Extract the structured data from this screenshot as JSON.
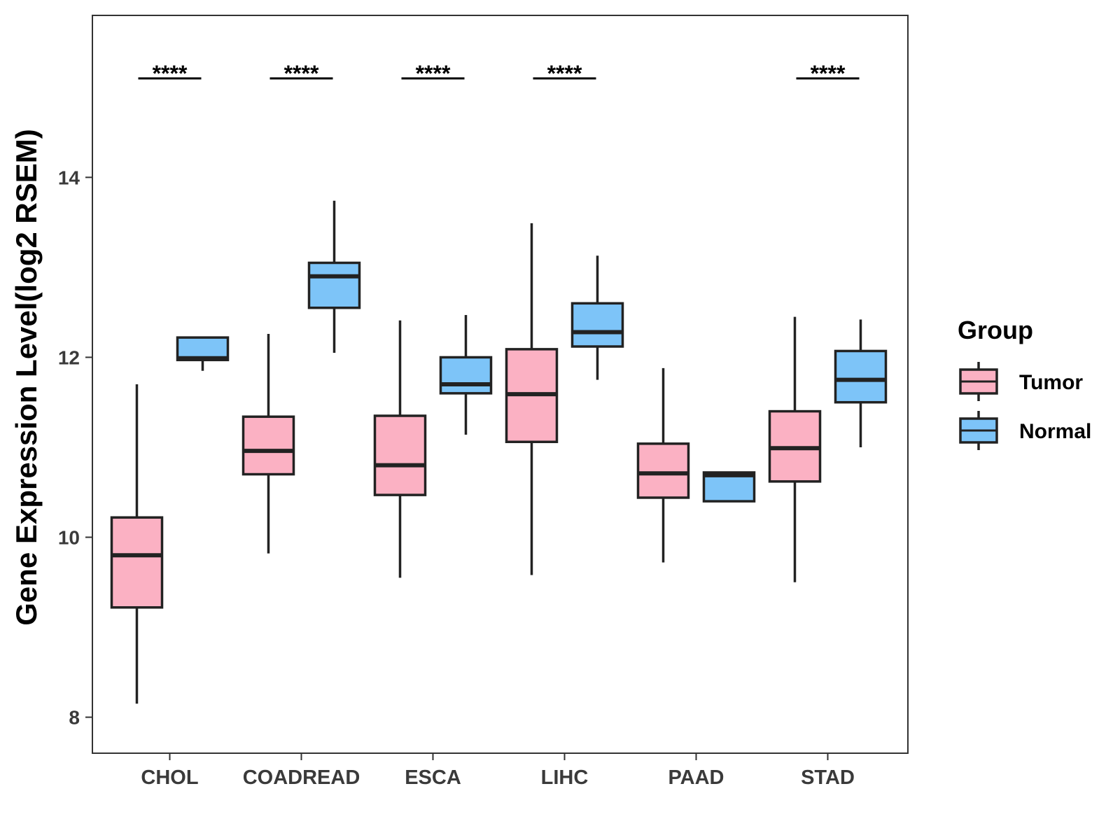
{
  "chart_data": {
    "type": "boxplot",
    "title": "",
    "xlabel": "",
    "ylabel": "Gene Expression Level(log2 RSEM)",
    "ylim": [
      7.6,
      15.8
    ],
    "yticks": [
      8,
      10,
      12,
      14
    ],
    "ytick_labels": [
      "8",
      "10",
      "12",
      "14"
    ],
    "grid": false,
    "categories": [
      "CHOL",
      "COADREAD",
      "ESCA",
      "LIHC",
      "PAAD",
      "STAD"
    ],
    "legend": {
      "title": "Group",
      "position": "right",
      "entries": [
        {
          "name": "Tumor",
          "color": "#FBB1C3"
        },
        {
          "name": "Normal",
          "color": "#7DC4F8"
        }
      ]
    },
    "series": [
      {
        "name": "Tumor",
        "color": "#FBB1C3",
        "boxes": [
          {
            "category": "CHOL",
            "whisker_low": 8.15,
            "q1": 9.22,
            "median": 9.8,
            "q3": 10.22,
            "whisker_high": 11.7
          },
          {
            "category": "COADREAD",
            "whisker_low": 9.82,
            "q1": 10.7,
            "median": 10.96,
            "q3": 11.34,
            "whisker_high": 12.26
          },
          {
            "category": "ESCA",
            "whisker_low": 9.55,
            "q1": 10.47,
            "median": 10.8,
            "q3": 11.35,
            "whisker_high": 12.41
          },
          {
            "category": "LIHC",
            "whisker_low": 9.58,
            "q1": 11.06,
            "median": 11.59,
            "q3": 12.09,
            "whisker_high": 13.49
          },
          {
            "category": "PAAD",
            "whisker_low": 9.72,
            "q1": 10.44,
            "median": 10.71,
            "q3": 11.04,
            "whisker_high": 11.88
          },
          {
            "category": "STAD",
            "whisker_low": 9.5,
            "q1": 10.62,
            "median": 10.99,
            "q3": 11.4,
            "whisker_high": 12.45
          }
        ]
      },
      {
        "name": "Normal",
        "color": "#7DC4F8",
        "boxes": [
          {
            "category": "CHOL",
            "whisker_low": 11.85,
            "q1": 11.97,
            "median": 11.99,
            "q3": 12.22,
            "whisker_high": 12.22
          },
          {
            "category": "COADREAD",
            "whisker_low": 12.05,
            "q1": 12.55,
            "median": 12.9,
            "q3": 13.05,
            "whisker_high": 13.74
          },
          {
            "category": "ESCA",
            "whisker_low": 11.14,
            "q1": 11.6,
            "median": 11.7,
            "q3": 12.0,
            "whisker_high": 12.47
          },
          {
            "category": "LIHC",
            "whisker_low": 11.75,
            "q1": 12.12,
            "median": 12.28,
            "q3": 12.6,
            "whisker_high": 13.13
          },
          {
            "category": "PAAD",
            "whisker_low": 10.4,
            "q1": 10.4,
            "median": 10.69,
            "q3": 10.72,
            "whisker_high": 10.72
          },
          {
            "category": "STAD",
            "whisker_low": 11.0,
            "q1": 11.5,
            "median": 11.75,
            "q3": 12.07,
            "whisker_high": 12.42
          }
        ]
      }
    ],
    "significance": [
      {
        "category": "CHOL",
        "label": "****"
      },
      {
        "category": "COADREAD",
        "label": "****"
      },
      {
        "category": "ESCA",
        "label": "****"
      },
      {
        "category": "LIHC",
        "label": "****"
      },
      {
        "category": "STAD",
        "label": "****"
      }
    ],
    "significance_level": 15.1
  }
}
